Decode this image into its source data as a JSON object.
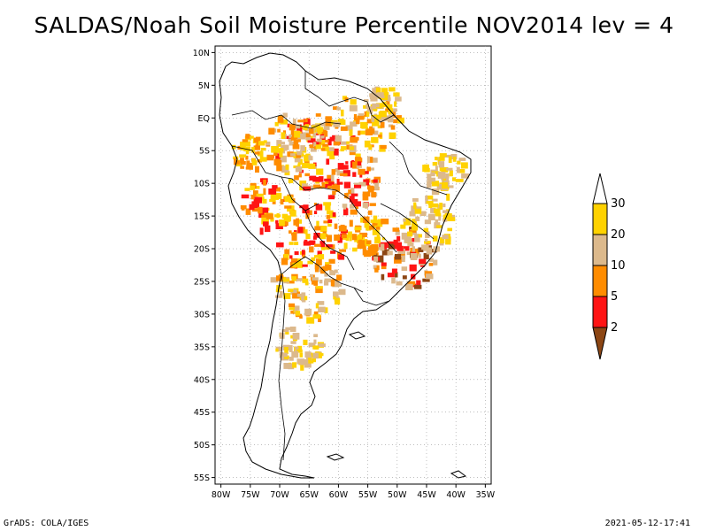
{
  "title": "SALDAS/Noah Soil Moisture Percentile NOV2014 lev = 4",
  "footer": {
    "left": "GrADS: COLA/IGES",
    "right": "2021-05-12-17:41"
  },
  "axes": {
    "lat_labels": [
      "10N",
      "5N",
      "EQ",
      "5S",
      "10S",
      "15S",
      "20S",
      "25S",
      "30S",
      "35S",
      "40S",
      "45S",
      "50S",
      "55S"
    ],
    "lon_labels": [
      "80W",
      "75W",
      "70W",
      "65W",
      "60W",
      "55W",
      "50W",
      "45W",
      "40W",
      "35W"
    ],
    "lat_range": [
      -56,
      11
    ],
    "lon_range": [
      -81,
      -34
    ]
  },
  "colorbar": {
    "labels": [
      "30",
      "20",
      "10",
      "5",
      "2"
    ],
    "colors": {
      "above_30": "#ffffff",
      "20_30": "#ffd200",
      "10_20": "#dcb98c",
      "5_10": "#ff8c00",
      "2_5": "#ff1414",
      "below_2": "#8c4614"
    }
  }
}
